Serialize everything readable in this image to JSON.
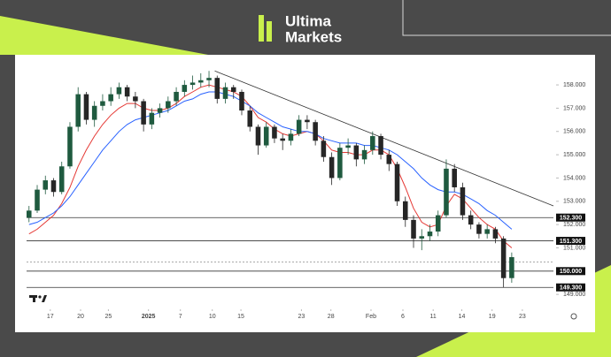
{
  "brand": {
    "line1": "Ultima",
    "line2": "Markets"
  },
  "chart_data": {
    "type": "candlestick",
    "x": [
      0,
      1,
      2,
      3,
      4,
      5,
      6,
      7,
      8,
      9,
      10,
      11,
      12,
      13,
      14,
      15,
      16,
      17,
      18,
      19,
      20,
      21,
      22,
      23,
      24,
      25,
      26,
      27,
      28,
      29,
      30,
      31,
      32,
      33,
      34,
      35,
      36,
      37,
      38,
      39,
      40,
      41,
      42,
      43,
      44,
      45,
      46,
      47,
      48,
      49,
      50,
      51,
      52,
      53,
      54,
      55,
      56,
      57,
      58,
      59
    ],
    "open": [
      152.3,
      152.6,
      153.5,
      153.9,
      153.4,
      154.5,
      156.2,
      157.6,
      156.5,
      157.1,
      157.3,
      157.6,
      157.9,
      157.5,
      157.3,
      156.3,
      156.8,
      157.0,
      157.3,
      157.7,
      158.0,
      158.1,
      158.2,
      158.3,
      157.4,
      157.9,
      157.7,
      156.9,
      156.2,
      155.4,
      156.2,
      155.7,
      155.6,
      155.9,
      156.5,
      156.4,
      155.6,
      154.9,
      154.0,
      155.3,
      155.4,
      154.8,
      155.2,
      155.8,
      155.0,
      154.6,
      153.0,
      152.2,
      151.4,
      151.5,
      151.7,
      152.4,
      154.4,
      153.6,
      152.4,
      152.0,
      151.6,
      151.8,
      151.4,
      149.7
    ],
    "high": [
      152.8,
      153.7,
      154.1,
      154.0,
      154.7,
      156.4,
      157.9,
      157.7,
      157.3,
      157.6,
      157.9,
      158.1,
      158.0,
      157.7,
      157.4,
      157.0,
      157.2,
      157.5,
      157.9,
      158.2,
      158.4,
      158.5,
      158.6,
      158.4,
      158.1,
      158.0,
      157.8,
      157.1,
      156.3,
      156.4,
      156.3,
      155.9,
      156.1,
      156.7,
      156.7,
      156.5,
      155.8,
      155.1,
      155.5,
      155.7,
      155.5,
      155.4,
      156.0,
      155.9,
      155.2,
      154.7,
      153.2,
      152.4,
      151.8,
      152.0,
      152.6,
      154.8,
      154.6,
      153.8,
      152.6,
      152.1,
      152.0,
      151.9,
      151.5,
      150.8
    ],
    "low": [
      152.1,
      152.5,
      153.3,
      153.2,
      153.3,
      154.4,
      156.0,
      156.3,
      156.2,
      156.9,
      157.1,
      157.4,
      157.3,
      157.0,
      156.0,
      156.1,
      156.6,
      156.8,
      157.1,
      157.5,
      157.8,
      157.9,
      157.9,
      157.2,
      157.2,
      157.4,
      156.7,
      156.0,
      155.0,
      155.3,
      155.5,
      155.2,
      155.4,
      155.8,
      156.1,
      155.4,
      154.7,
      153.7,
      153.9,
      155.0,
      154.5,
      154.6,
      155.0,
      154.8,
      154.3,
      152.8,
      151.9,
      151.0,
      150.9,
      151.3,
      151.5,
      152.3,
      153.4,
      152.2,
      151.8,
      151.4,
      151.4,
      151.2,
      149.3,
      149.5
    ],
    "close": [
      152.6,
      153.5,
      153.9,
      153.4,
      154.5,
      156.2,
      157.6,
      156.5,
      157.1,
      157.3,
      157.6,
      157.9,
      157.5,
      157.3,
      156.3,
      156.8,
      157.0,
      157.3,
      157.7,
      158.0,
      158.1,
      158.2,
      158.3,
      157.4,
      157.9,
      157.7,
      156.9,
      156.2,
      155.4,
      156.2,
      155.7,
      155.6,
      155.9,
      156.5,
      156.4,
      155.6,
      154.9,
      154.0,
      155.3,
      155.4,
      154.8,
      155.2,
      155.8,
      155.0,
      154.6,
      153.0,
      152.2,
      151.4,
      151.5,
      151.7,
      152.4,
      154.4,
      153.6,
      152.4,
      152.0,
      151.6,
      151.8,
      151.4,
      149.7,
      150.6
    ],
    "up_color": "#1f5a3f",
    "down_color": "#262626",
    "lines": [
      {
        "color": "#e53935",
        "values": [
          151.6,
          151.8,
          152.1,
          152.4,
          152.9,
          153.6,
          154.5,
          155.2,
          155.8,
          156.3,
          156.7,
          157.0,
          157.2,
          157.2,
          157.0,
          156.9,
          156.9,
          157.0,
          157.2,
          157.5,
          157.7,
          157.9,
          158.0,
          157.9,
          157.8,
          157.7,
          157.5,
          157.1,
          156.6,
          156.4,
          156.1,
          155.9,
          155.8,
          155.9,
          156.0,
          155.9,
          155.6,
          155.2,
          155.1,
          155.1,
          155.0,
          155.0,
          155.2,
          155.2,
          155.0,
          154.4,
          153.6,
          152.7,
          152.1,
          151.9,
          152.0,
          152.8,
          153.3,
          153.1,
          152.7,
          152.3,
          152.0,
          151.8,
          151.3,
          151.0
        ]
      },
      {
        "color": "#2962ff",
        "values": [
          152.0,
          152.1,
          152.3,
          152.5,
          152.8,
          153.2,
          153.7,
          154.2,
          154.7,
          155.2,
          155.6,
          156.0,
          156.3,
          156.5,
          156.6,
          156.7,
          156.8,
          156.9,
          157.1,
          157.3,
          157.4,
          157.6,
          157.7,
          157.7,
          157.6,
          157.5,
          157.3,
          157.1,
          156.8,
          156.6,
          156.4,
          156.2,
          156.1,
          156.0,
          156.0,
          155.9,
          155.7,
          155.6,
          155.5,
          155.5,
          155.5,
          155.4,
          155.4,
          155.3,
          155.2,
          155.0,
          154.7,
          154.4,
          154.0,
          153.7,
          153.5,
          153.4,
          153.4,
          153.3,
          153.1,
          152.9,
          152.6,
          152.4,
          152.1,
          151.8
        ]
      }
    ],
    "trendline": {
      "x": [
        22.7,
        64.1
      ],
      "y": [
        158.6,
        152.8
      ]
    },
    "levels": [
      {
        "value": 152.3,
        "label": "152.300"
      },
      {
        "value": 151.3,
        "label": "151.300"
      },
      {
        "value": 150.0,
        "label": "150.000"
      },
      {
        "value": 149.3,
        "label": "149.300"
      }
    ],
    "dotted_level": 150.4,
    "xlim": [
      -0.3,
      64.1
    ],
    "ylim": [
      148.55,
      158.8
    ],
    "yticks": [
      {
        "value": 158,
        "label": "158.000"
      },
      {
        "value": 157,
        "label": "157.000"
      },
      {
        "value": 156,
        "label": "156.000"
      },
      {
        "value": 155,
        "label": "155.000"
      },
      {
        "value": 154,
        "label": "154.000"
      },
      {
        "value": 153,
        "label": "153.000"
      },
      {
        "value": 152,
        "label": "152.000"
      },
      {
        "value": 151,
        "label": "151.000"
      },
      {
        "value": 149,
        "label": "149.000"
      }
    ],
    "xticks": [
      {
        "value": 2.6,
        "label": "17"
      },
      {
        "value": 6.3,
        "label": "20"
      },
      {
        "value": 9.7,
        "label": "25"
      },
      {
        "value": 14.6,
        "label": "2025"
      },
      {
        "value": 18.5,
        "label": "7"
      },
      {
        "value": 22.4,
        "label": "10"
      },
      {
        "value": 25.9,
        "label": "15"
      },
      {
        "value": 33.3,
        "label": "23"
      },
      {
        "value": 36.9,
        "label": "28"
      },
      {
        "value": 41.8,
        "label": "Feb"
      },
      {
        "value": 45.7,
        "label": "6"
      },
      {
        "value": 49.4,
        "label": "11"
      },
      {
        "value": 52.9,
        "label": "14"
      },
      {
        "value": 56.6,
        "label": "19"
      },
      {
        "value": 60.3,
        "label": "23"
      }
    ]
  }
}
